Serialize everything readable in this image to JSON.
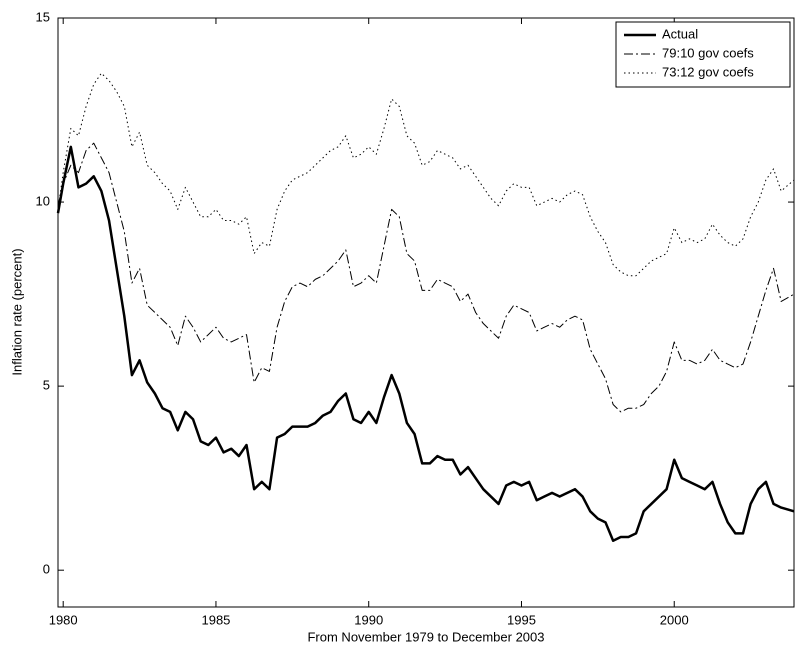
{
  "chart_data": {
    "type": "line",
    "xlabel": "From November 1979 to December 2003",
    "ylabel": "Inflation rate (percent)",
    "x": [
      1979.83,
      1980.0,
      1980.25,
      1980.5,
      1980.75,
      1981.0,
      1981.25,
      1981.5,
      1981.75,
      1982.0,
      1982.25,
      1982.5,
      1982.75,
      1983.0,
      1983.25,
      1983.5,
      1983.75,
      1984.0,
      1984.25,
      1984.5,
      1984.75,
      1985.0,
      1985.25,
      1985.5,
      1985.75,
      1986.0,
      1986.25,
      1986.5,
      1986.75,
      1987.0,
      1987.25,
      1987.5,
      1987.75,
      1988.0,
      1988.25,
      1988.5,
      1988.75,
      1989.0,
      1989.25,
      1989.5,
      1989.75,
      1990.0,
      1990.25,
      1990.5,
      1990.75,
      1991.0,
      1991.25,
      1991.5,
      1991.75,
      1992.0,
      1992.25,
      1992.5,
      1992.75,
      1993.0,
      1993.25,
      1993.5,
      1993.75,
      1994.0,
      1994.25,
      1994.5,
      1994.75,
      1995.0,
      1995.25,
      1995.5,
      1995.75,
      1996.0,
      1996.25,
      1996.5,
      1996.75,
      1997.0,
      1997.25,
      1997.5,
      1997.75,
      1998.0,
      1998.25,
      1998.5,
      1998.75,
      1999.0,
      1999.25,
      1999.5,
      1999.75,
      2000.0,
      2000.25,
      2000.5,
      2000.75,
      2001.0,
      2001.25,
      2001.5,
      2001.75,
      2002.0,
      2002.25,
      2002.5,
      2002.75,
      2003.0,
      2003.25,
      2003.5,
      2003.92
    ],
    "series": [
      {
        "name": "Actual",
        "color": "#000000",
        "style": "solid",
        "width": 2.5,
        "values": [
          9.7,
          10.5,
          11.5,
          10.4,
          10.5,
          10.7,
          10.3,
          9.5,
          8.2,
          6.9,
          5.3,
          5.7,
          5.1,
          4.8,
          4.4,
          4.3,
          3.8,
          4.3,
          4.1,
          3.5,
          3.4,
          3.6,
          3.2,
          3.3,
          3.1,
          3.4,
          2.2,
          2.4,
          2.2,
          3.6,
          3.7,
          3.9,
          3.9,
          3.9,
          4.0,
          4.2,
          4.3,
          4.6,
          4.8,
          4.1,
          4.0,
          4.3,
          4.0,
          4.7,
          5.3,
          4.8,
          4.0,
          3.7,
          2.9,
          2.9,
          3.1,
          3.0,
          3.0,
          2.6,
          2.8,
          2.5,
          2.2,
          2.0,
          1.8,
          2.3,
          2.4,
          2.3,
          2.4,
          1.9,
          2.0,
          2.1,
          2.0,
          2.1,
          2.2,
          2.0,
          1.6,
          1.4,
          1.3,
          0.8,
          0.9,
          0.9,
          1.0,
          1.6,
          1.8,
          2.0,
          2.2,
          3.0,
          2.5,
          2.4,
          2.3,
          2.2,
          2.4,
          1.8,
          1.3,
          1.0,
          1.0,
          1.8,
          2.2,
          2.4,
          1.8,
          1.7,
          1.6
        ]
      },
      {
        "name": "79:10 gov coefs",
        "color": "#000000",
        "style": "dashdot",
        "width": 1,
        "values": [
          9.9,
          10.5,
          11.0,
          10.8,
          11.4,
          11.6,
          11.2,
          10.8,
          10.0,
          9.2,
          7.8,
          8.2,
          7.2,
          7.0,
          6.8,
          6.6,
          6.1,
          6.9,
          6.6,
          6.2,
          6.4,
          6.6,
          6.3,
          6.2,
          6.3,
          6.4,
          5.1,
          5.5,
          5.4,
          6.6,
          7.3,
          7.7,
          7.8,
          7.7,
          7.9,
          8.0,
          8.2,
          8.4,
          8.7,
          7.7,
          7.8,
          8.0,
          7.8,
          8.8,
          9.8,
          9.6,
          8.6,
          8.4,
          7.6,
          7.6,
          7.9,
          7.8,
          7.7,
          7.3,
          7.5,
          7.0,
          6.7,
          6.5,
          6.3,
          6.9,
          7.2,
          7.1,
          7.0,
          6.5,
          6.6,
          6.7,
          6.6,
          6.8,
          6.9,
          6.8,
          6.0,
          5.6,
          5.2,
          4.5,
          4.3,
          4.4,
          4.4,
          4.5,
          4.8,
          5.0,
          5.4,
          6.2,
          5.7,
          5.7,
          5.6,
          5.7,
          6.0,
          5.7,
          5.6,
          5.5,
          5.6,
          6.2,
          6.9,
          7.6,
          8.2,
          7.3,
          7.5
        ]
      },
      {
        "name": "73:12 gov coefs",
        "color": "#000000",
        "style": "dotted",
        "width": 1,
        "values": [
          9.8,
          10.8,
          12.0,
          11.8,
          12.6,
          13.2,
          13.5,
          13.3,
          13.0,
          12.6,
          11.5,
          11.9,
          11.0,
          10.8,
          10.5,
          10.3,
          9.8,
          10.4,
          10.0,
          9.6,
          9.6,
          9.8,
          9.5,
          9.5,
          9.4,
          9.6,
          8.6,
          8.9,
          8.8,
          9.8,
          10.3,
          10.6,
          10.7,
          10.8,
          11.0,
          11.2,
          11.4,
          11.5,
          11.8,
          11.2,
          11.3,
          11.5,
          11.3,
          12.0,
          12.8,
          12.6,
          11.8,
          11.6,
          11.0,
          11.1,
          11.4,
          11.3,
          11.2,
          10.9,
          11.0,
          10.7,
          10.4,
          10.1,
          9.9,
          10.3,
          10.5,
          10.4,
          10.4,
          9.9,
          10.0,
          10.1,
          10.0,
          10.2,
          10.3,
          10.2,
          9.6,
          9.2,
          8.9,
          8.3,
          8.1,
          8.0,
          8.0,
          8.2,
          8.4,
          8.5,
          8.6,
          9.3,
          8.9,
          9.0,
          8.9,
          9.0,
          9.4,
          9.1,
          8.9,
          8.8,
          9.0,
          9.6,
          10.0,
          10.6,
          10.9,
          10.3,
          10.6
        ]
      }
    ],
    "xlim": [
      1979.83,
      2003.92
    ],
    "xticks": [
      1980,
      1985,
      1990,
      1995,
      2000
    ],
    "ylim": [
      -1,
      15
    ],
    "yticks": [
      0,
      5,
      10,
      15
    ],
    "grid": false,
    "legend": "upper right"
  }
}
